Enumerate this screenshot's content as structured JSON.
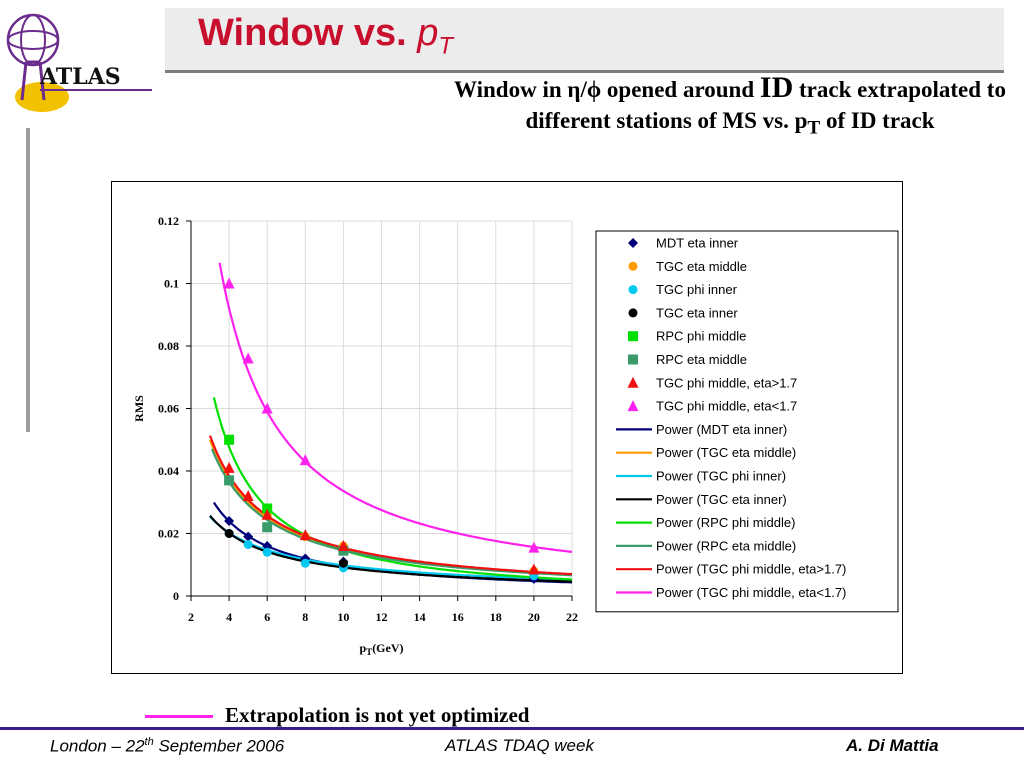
{
  "slide": {
    "title_prefix": "Window vs. ",
    "title_var": "p",
    "title_sub": "T",
    "logo_text": "ATLAS",
    "desc_part1": "Window in η/ϕ opened around ",
    "desc_id": "ID",
    "desc_part2": " track extrapolated to different stations of MS vs. p",
    "desc_sub": "T",
    "desc_part3": " of ID track",
    "note": "Extrapolation is not yet optimized",
    "footer_left_a": "London – 22",
    "footer_left_sup": "th",
    "footer_left_b": " September 2006",
    "footer_mid": "ATLAS TDAQ week",
    "footer_right": "A. Di Mattia"
  },
  "colors": {
    "title_red": "#c8102e",
    "navy": "#00007a",
    "orange": "#ff9a00",
    "cyan": "#00c8f0",
    "black": "#000000",
    "green": "#00e000",
    "sea_green": "#3a9a6a",
    "red": "#f01010",
    "magenta": "#ff22ee"
  },
  "chart_data": {
    "type": "scatter",
    "title": "",
    "xlabel": "p",
    "xlabel_sub": "T",
    "xlabel_unit": "(GeV)",
    "ylabel": "RMS",
    "xlim": [
      2,
      22
    ],
    "ylim": [
      0,
      0.12
    ],
    "x_ticks": [
      "2",
      "4",
      "6",
      "8",
      "10",
      "12",
      "14",
      "16",
      "18",
      "20",
      "22"
    ],
    "y_ticks": [
      "0",
      "0.02",
      "0.04",
      "0.06",
      "0.08",
      "0.1",
      "0.12"
    ],
    "grid": true,
    "legend_position": "right",
    "series": [
      {
        "name": "MDT eta inner",
        "marker": "diamond",
        "color": "#00007a",
        "points": [
          [
            4,
            0.024
          ],
          [
            5,
            0.019
          ],
          [
            6,
            0.016
          ],
          [
            8,
            0.012
          ],
          [
            10,
            0.011
          ],
          [
            20,
            0.0055
          ]
        ]
      },
      {
        "name": "TGC eta middle",
        "marker": "circle",
        "color": "#ff9a00",
        "points": [
          [
            4,
            0.037
          ],
          [
            6,
            0.026
          ],
          [
            8,
            0.019
          ],
          [
            10,
            0.016
          ],
          [
            20,
            0.008
          ]
        ]
      },
      {
        "name": "TGC phi inner",
        "marker": "circle",
        "color": "#00c8f0",
        "points": [
          [
            4,
            0.02
          ],
          [
            5,
            0.0165
          ],
          [
            6,
            0.014
          ],
          [
            8,
            0.0105
          ],
          [
            10,
            0.009
          ],
          [
            20,
            0.0065
          ]
        ]
      },
      {
        "name": "TGC eta inner",
        "marker": "circle",
        "color": "#000000",
        "points": [
          [
            4,
            0.02
          ],
          [
            10,
            0.0105
          ]
        ]
      },
      {
        "name": "RPC phi middle",
        "marker": "square",
        "color": "#00e000",
        "points": [
          [
            4,
            0.05
          ],
          [
            6,
            0.028
          ]
        ]
      },
      {
        "name": "RPC eta middle",
        "marker": "square",
        "color": "#3a9a6a",
        "points": [
          [
            4,
            0.037
          ],
          [
            6,
            0.022
          ],
          [
            10,
            0.0145
          ]
        ]
      },
      {
        "name": "TGC phi middle, eta>1.7",
        "marker": "triangle",
        "color": "#f01010",
        "points": [
          [
            4,
            0.041
          ],
          [
            5,
            0.032
          ],
          [
            6,
            0.026
          ],
          [
            8,
            0.0195
          ],
          [
            10,
            0.016
          ],
          [
            20,
            0.0085
          ]
        ]
      },
      {
        "name": "TGC phi middle, eta<1.7",
        "marker": "triangle",
        "color": "#ff22ee",
        "points": [
          [
            4,
            0.1
          ],
          [
            5,
            0.076
          ],
          [
            6,
            0.06
          ],
          [
            8,
            0.0435
          ],
          [
            20,
            0.0155
          ]
        ]
      }
    ],
    "fits": [
      {
        "name": "Power (MDT eta inner)",
        "color": "#00007a",
        "a": 0.0957,
        "b": 1.0,
        "x_start": 3.2
      },
      {
        "name": "Power (TGC eta middle)",
        "color": "#ff9a00",
        "a": 0.15,
        "b": 1.0,
        "x_start": 3.0
      },
      {
        "name": "Power (TGC phi inner)",
        "color": "#00c8f0",
        "a": 0.0605,
        "b": 0.79,
        "x_start": 3.0
      },
      {
        "name": "Power (TGC eta inner)",
        "color": "#000000",
        "a": 0.0661,
        "b": 0.86,
        "x_start": 3.0
      },
      {
        "name": "Power (RPC phi middle)",
        "color": "#00e000",
        "a": 0.285,
        "b": 1.29,
        "x_start": 3.2
      },
      {
        "name": "Power (RPC eta middle)",
        "color": "#3a9a6a",
        "a": 0.146,
        "b": 1.0,
        "x_start": 3.1
      },
      {
        "name": "Power (TGC phi middle, eta>1.7)",
        "color": "#f01010",
        "a": 0.154,
        "b": 1.0,
        "x_start": 3.0
      },
      {
        "name": "Power (TGC phi middle, eta<1.7)",
        "color": "#ff22ee",
        "a": 0.423,
        "b": 1.1,
        "x_start": 3.5
      }
    ]
  }
}
